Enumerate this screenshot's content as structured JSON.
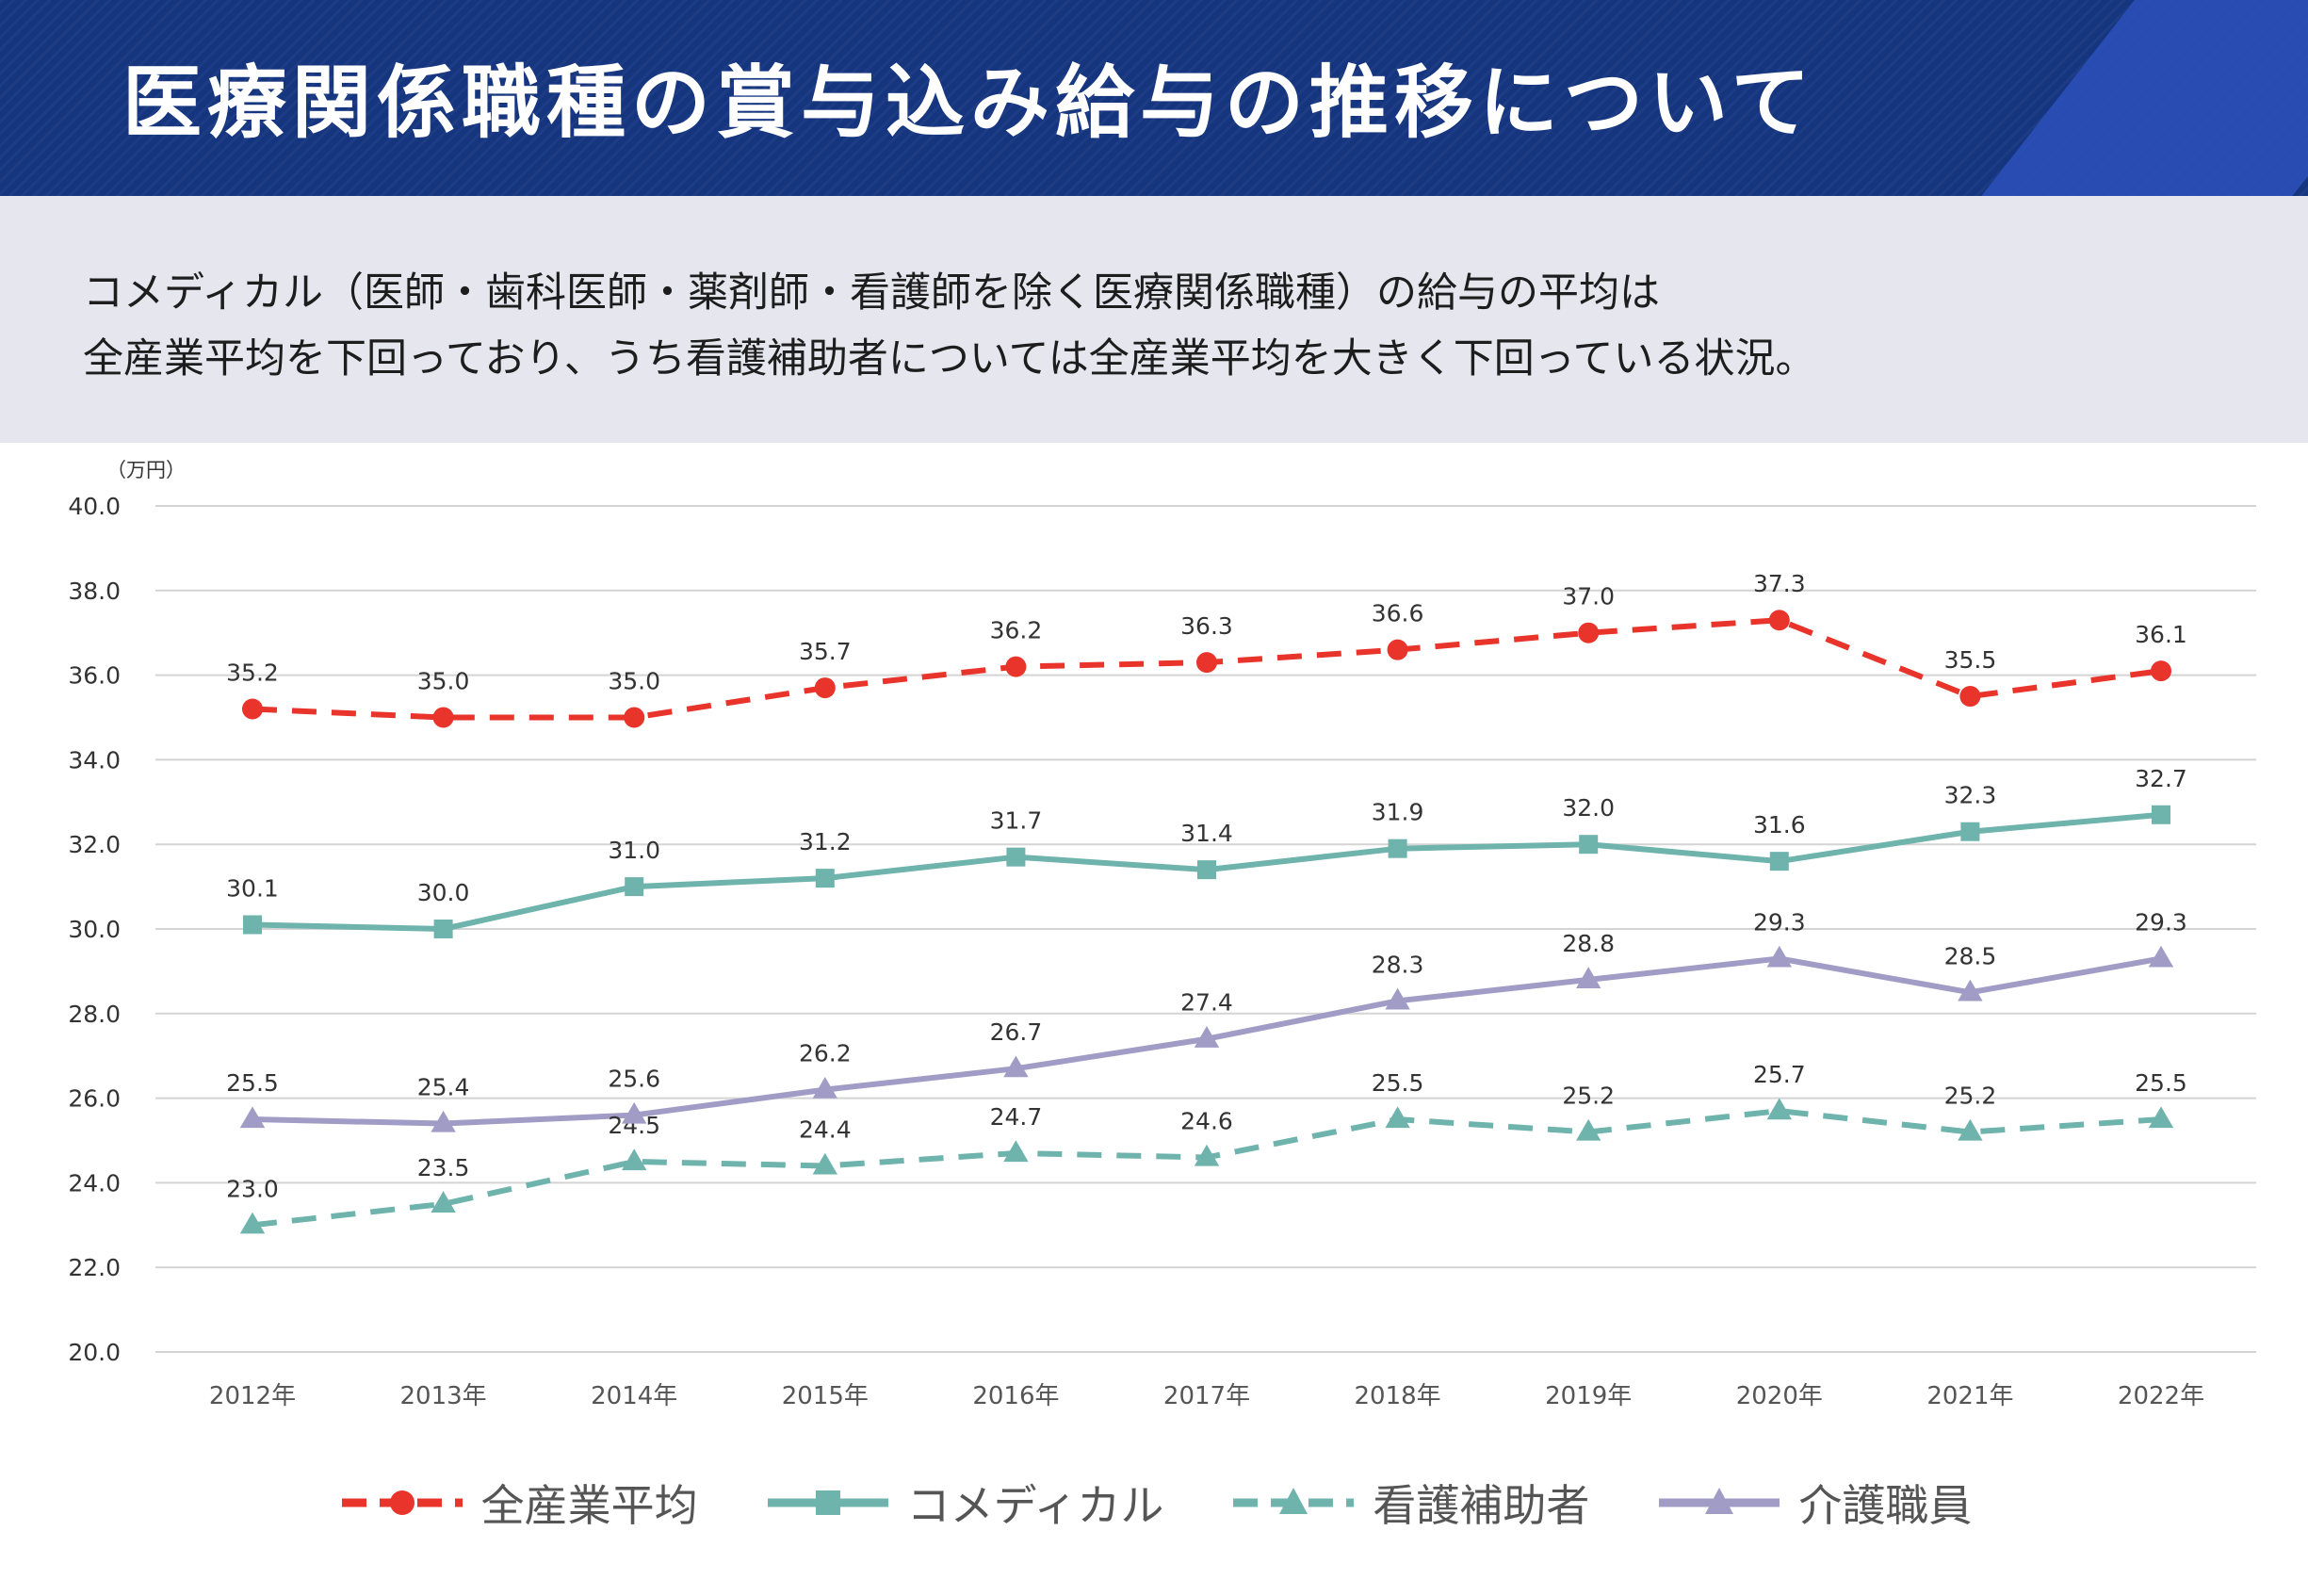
{
  "header": {
    "title": "医療関係職種の賞与込み給与の推移について"
  },
  "intro": {
    "line1": "コメディカル（医師・歯科医師・薬剤師・看護師を除く医療関係職種）の給与の平均は",
    "line2": "全産業平均を下回っており、うち看護補助者については全産業平均を大きく下回っている状況。"
  },
  "colors": {
    "header_bg": "#15357f",
    "intro_bg": "#e6e6ef",
    "all_industry": "#e8342a",
    "comedical": "#6fb3ad",
    "nursing_assistant": "#6fb3ad",
    "care_worker": "#a09cc6"
  },
  "chart_data": {
    "type": "line",
    "y_unit": "（万円）",
    "ylim": [
      20.0,
      40.0
    ],
    "yticks": [
      "20.0",
      "22.0",
      "24.0",
      "26.0",
      "28.0",
      "30.0",
      "32.0",
      "34.0",
      "36.0",
      "38.0",
      "40.0"
    ],
    "grid": true,
    "legend_position": "bottom",
    "categories": [
      "2012年",
      "2013年",
      "2014年",
      "2015年",
      "2016年",
      "2017年",
      "2018年",
      "2019年",
      "2020年",
      "2021年",
      "2022年"
    ],
    "series": [
      {
        "name": "全産業平均",
        "style": "dashed",
        "marker": "circle",
        "color": "#e8342a",
        "values": [
          35.2,
          35.0,
          35.0,
          35.7,
          36.2,
          36.3,
          36.6,
          37.0,
          37.3,
          35.5,
          36.1
        ],
        "labels": [
          "35.2",
          "35.0",
          "35.0",
          "35.7",
          "36.2",
          "36.3",
          "36.6",
          "37.0",
          "37.3",
          "35.5",
          "36.1"
        ]
      },
      {
        "name": "コメディカル",
        "style": "solid",
        "marker": "square",
        "color": "#6fb3ad",
        "values": [
          30.1,
          30.0,
          31.0,
          31.2,
          31.7,
          31.4,
          31.9,
          32.0,
          31.6,
          32.3,
          32.7
        ],
        "labels": [
          "30.1",
          "30.0",
          "31.0",
          "31.2",
          "31.7",
          "31.4",
          "31.9",
          "32.0",
          "31.6",
          "32.3",
          "32.7"
        ]
      },
      {
        "name": "看護補助者",
        "style": "dashed",
        "marker": "triangle",
        "color": "#6fb3ad",
        "values": [
          23.0,
          23.5,
          24.5,
          24.4,
          24.7,
          24.6,
          25.5,
          25.2,
          25.7,
          25.2,
          25.5
        ],
        "labels": [
          "23.0",
          "23.5",
          "24.5",
          "24.4",
          "24.7",
          "24.6",
          "25.5",
          "25.2",
          "25.7",
          "25.2",
          "25.5"
        ]
      },
      {
        "name": "介護職員",
        "style": "solid",
        "marker": "triangle",
        "color": "#a09cc6",
        "values": [
          25.5,
          25.4,
          25.6,
          26.2,
          26.7,
          27.4,
          28.3,
          28.8,
          29.3,
          28.5,
          29.3
        ],
        "labels": [
          "25.5",
          "25.4",
          "25.6",
          "26.2",
          "26.7",
          "27.4",
          "28.3",
          "28.8",
          "29.3",
          "28.5",
          "29.3"
        ]
      }
    ]
  }
}
